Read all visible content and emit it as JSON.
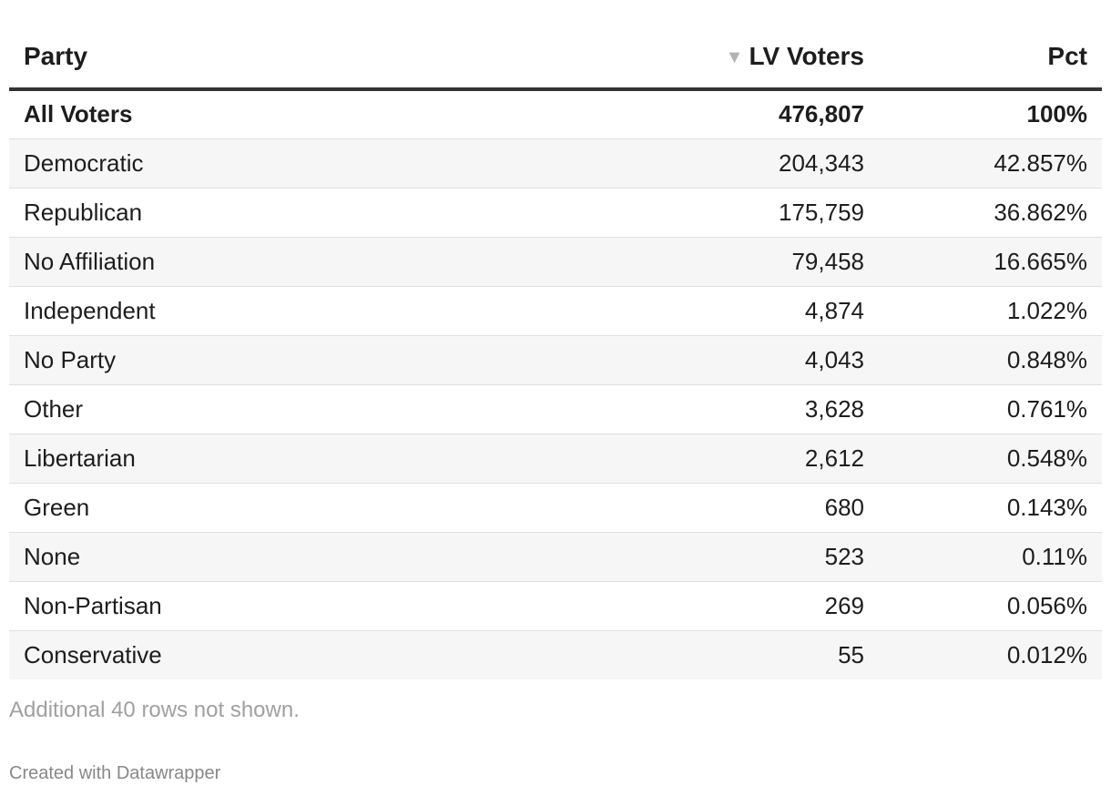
{
  "chart_data": {
    "type": "table",
    "columns": [
      "Party",
      "LV Voters",
      "Pct"
    ],
    "sort": {
      "column": "LV Voters",
      "direction": "descending"
    },
    "rows": [
      {
        "party": "All Voters",
        "voters": "476,807",
        "pct": "100%",
        "bold": true
      },
      {
        "party": "Democratic",
        "voters": "204,343",
        "pct": "42.857%",
        "bold": false
      },
      {
        "party": "Republican",
        "voters": "175,759",
        "pct": "36.862%",
        "bold": false
      },
      {
        "party": "No Affiliation",
        "voters": "79,458",
        "pct": "16.665%",
        "bold": false
      },
      {
        "party": "Independent",
        "voters": "4,874",
        "pct": "1.022%",
        "bold": false
      },
      {
        "party": "No Party",
        "voters": "4,043",
        "pct": "0.848%",
        "bold": false
      },
      {
        "party": "Other",
        "voters": "3,628",
        "pct": "0.761%",
        "bold": false
      },
      {
        "party": "Libertarian",
        "voters": "2,612",
        "pct": "0.548%",
        "bold": false
      },
      {
        "party": "Green",
        "voters": "680",
        "pct": "0.143%",
        "bold": false
      },
      {
        "party": "None",
        "voters": "523",
        "pct": "0.11%",
        "bold": false
      },
      {
        "party": "Non-Partisan",
        "voters": "269",
        "pct": "0.056%",
        "bold": false
      },
      {
        "party": "Conservative",
        "voters": "55",
        "pct": "0.012%",
        "bold": false
      }
    ],
    "notes": "Additional 40 rows not shown.",
    "footer": "Created with Datawrapper"
  },
  "icons": {
    "sort_icon": "sort-descending-icon"
  },
  "colors": {
    "header_rule": "#333333",
    "stripe": "#f6f6f6",
    "row_divider": "#e0e0e0",
    "muted_text": "#a0a0a0"
  }
}
